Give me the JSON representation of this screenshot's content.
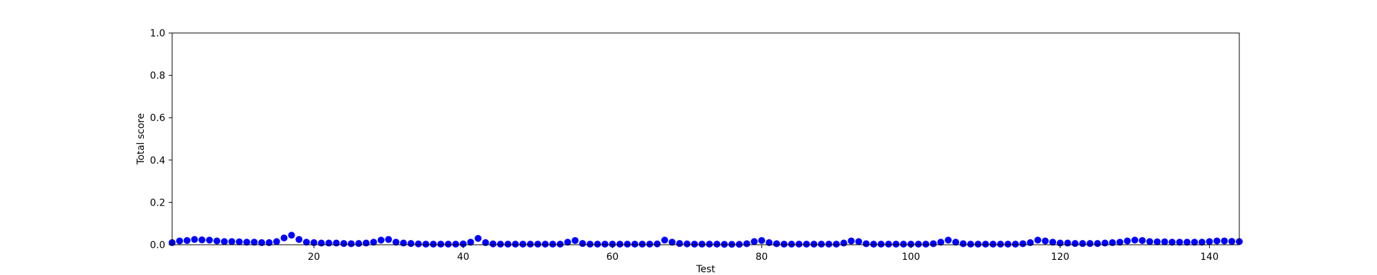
{
  "chart_data": {
    "type": "scatter",
    "title": "",
    "xlabel": "Test",
    "ylabel": "Total score",
    "xlim": [
      1,
      144
    ],
    "ylim": [
      0,
      1.0
    ],
    "grid": false,
    "marker_color": "#0000ff",
    "x_ticks": [
      20,
      40,
      60,
      80,
      100,
      120,
      140
    ],
    "x_tick_labels": [
      "20",
      "40",
      "60",
      "80",
      "100",
      "120",
      "140"
    ],
    "y_ticks": [
      0.0,
      0.2,
      0.4,
      0.6,
      0.8,
      1.0
    ],
    "y_tick_labels": [
      "0.0",
      "0.2",
      "0.4",
      "0.6",
      "0.8",
      "1.0"
    ],
    "series": [
      {
        "name": "Total score",
        "x": [
          1,
          2,
          3,
          4,
          5,
          6,
          7,
          8,
          9,
          10,
          11,
          12,
          13,
          14,
          15,
          16,
          17,
          18,
          19,
          20,
          21,
          22,
          23,
          24,
          25,
          26,
          27,
          28,
          29,
          30,
          31,
          32,
          33,
          34,
          35,
          36,
          37,
          38,
          39,
          40,
          41,
          42,
          43,
          44,
          45,
          46,
          47,
          48,
          49,
          50,
          51,
          52,
          53,
          54,
          55,
          56,
          57,
          58,
          59,
          60,
          61,
          62,
          63,
          64,
          65,
          66,
          67,
          68,
          69,
          70,
          71,
          72,
          73,
          74,
          75,
          76,
          77,
          78,
          79,
          80,
          81,
          82,
          83,
          84,
          85,
          86,
          87,
          88,
          89,
          90,
          91,
          92,
          93,
          94,
          95,
          96,
          97,
          98,
          99,
          100,
          101,
          102,
          103,
          104,
          105,
          106,
          107,
          108,
          109,
          110,
          111,
          112,
          113,
          114,
          115,
          116,
          117,
          118,
          119,
          120,
          121,
          122,
          123,
          124,
          125,
          126,
          127,
          128,
          129,
          130,
          131,
          132,
          133,
          134,
          135,
          136,
          137,
          138,
          139,
          140,
          141,
          142,
          143,
          144
        ],
        "values": [
          0.01,
          0.018,
          0.02,
          0.025,
          0.023,
          0.022,
          0.018,
          0.015,
          0.015,
          0.014,
          0.012,
          0.012,
          0.01,
          0.01,
          0.015,
          0.032,
          0.045,
          0.025,
          0.012,
          0.01,
          0.008,
          0.008,
          0.008,
          0.006,
          0.005,
          0.006,
          0.008,
          0.012,
          0.022,
          0.025,
          0.012,
          0.008,
          0.006,
          0.004,
          0.003,
          0.003,
          0.003,
          0.003,
          0.003,
          0.004,
          0.012,
          0.03,
          0.01,
          0.004,
          0.003,
          0.003,
          0.003,
          0.003,
          0.003,
          0.003,
          0.003,
          0.003,
          0.003,
          0.012,
          0.02,
          0.006,
          0.003,
          0.003,
          0.003,
          0.003,
          0.003,
          0.003,
          0.003,
          0.003,
          0.003,
          0.004,
          0.022,
          0.012,
          0.006,
          0.004,
          0.003,
          0.003,
          0.003,
          0.003,
          0.002,
          0.002,
          0.002,
          0.005,
          0.015,
          0.02,
          0.01,
          0.005,
          0.003,
          0.003,
          0.003,
          0.003,
          0.003,
          0.003,
          0.003,
          0.003,
          0.008,
          0.018,
          0.015,
          0.005,
          0.003,
          0.003,
          0.003,
          0.003,
          0.003,
          0.003,
          0.003,
          0.003,
          0.005,
          0.012,
          0.022,
          0.012,
          0.005,
          0.003,
          0.003,
          0.003,
          0.003,
          0.003,
          0.003,
          0.003,
          0.005,
          0.01,
          0.022,
          0.018,
          0.012,
          0.008,
          0.008,
          0.006,
          0.006,
          0.006,
          0.006,
          0.008,
          0.01,
          0.012,
          0.018,
          0.022,
          0.02,
          0.015,
          0.014,
          0.014,
          0.012,
          0.012,
          0.012,
          0.012,
          0.012,
          0.015,
          0.018,
          0.018,
          0.016,
          0.015
        ]
      }
    ]
  }
}
